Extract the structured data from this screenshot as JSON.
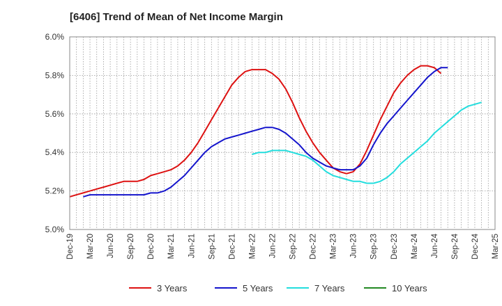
{
  "chart_data": {
    "type": "line",
    "title": "[6406]  Trend of Mean of Net Income Margin",
    "xlabel": "",
    "ylabel": "",
    "ylim": [
      5.0,
      6.0
    ],
    "yticks": [
      "5.0%",
      "5.2%",
      "5.4%",
      "5.6%",
      "5.8%",
      "6.0%"
    ],
    "xticks": [
      "Dec-19",
      "Mar-20",
      "Jun-20",
      "Sep-20",
      "Dec-20",
      "Mar-21",
      "Jun-21",
      "Sep-21",
      "Dec-21",
      "Mar-22",
      "Jun-22",
      "Sep-22",
      "Dec-22",
      "Mar-23",
      "Jun-23",
      "Sep-23",
      "Dec-23",
      "Mar-24",
      "Jun-24",
      "Sep-24",
      "Dec-24",
      "Mar-25"
    ],
    "grid": true,
    "legend_position": "bottom",
    "series": [
      {
        "name": "3 Years",
        "color": "#dd1111",
        "start_index": 0,
        "values": [
          5.17,
          5.18,
          5.19,
          5.2,
          5.21,
          5.22,
          5.23,
          5.24,
          5.25,
          5.25,
          5.25,
          5.26,
          5.28,
          5.29,
          5.3,
          5.31,
          5.33,
          5.36,
          5.4,
          5.45,
          5.51,
          5.57,
          5.63,
          5.69,
          5.75,
          5.79,
          5.82,
          5.83,
          5.83,
          5.83,
          5.81,
          5.78,
          5.73,
          5.66,
          5.58,
          5.51,
          5.45,
          5.4,
          5.36,
          5.32,
          5.3,
          5.29,
          5.3,
          5.34,
          5.41,
          5.49,
          5.57,
          5.64,
          5.71,
          5.76,
          5.8,
          5.83,
          5.85,
          5.85,
          5.84,
          5.81
        ]
      },
      {
        "name": "5 Years",
        "color": "#1414cc",
        "start_index": 2,
        "values": [
          5.17,
          5.18,
          5.18,
          5.18,
          5.18,
          5.18,
          5.18,
          5.18,
          5.18,
          5.18,
          5.19,
          5.19,
          5.2,
          5.22,
          5.25,
          5.28,
          5.32,
          5.36,
          5.4,
          5.43,
          5.45,
          5.47,
          5.48,
          5.49,
          5.5,
          5.51,
          5.52,
          5.53,
          5.53,
          5.52,
          5.5,
          5.47,
          5.44,
          5.4,
          5.37,
          5.35,
          5.33,
          5.32,
          5.31,
          5.31,
          5.31,
          5.33,
          5.37,
          5.44,
          5.5,
          5.55,
          5.59,
          5.63,
          5.67,
          5.71,
          5.75,
          5.79,
          5.82,
          5.84,
          5.84
        ]
      },
      {
        "name": "7 Years",
        "color": "#22dddd",
        "start_index": 27,
        "values": [
          5.39,
          5.4,
          5.4,
          5.41,
          5.41,
          5.41,
          5.4,
          5.39,
          5.38,
          5.36,
          5.33,
          5.3,
          5.28,
          5.27,
          5.26,
          5.25,
          5.25,
          5.24,
          5.24,
          5.25,
          5.27,
          5.3,
          5.34,
          5.37,
          5.4,
          5.43,
          5.46,
          5.5,
          5.53,
          5.56,
          5.59,
          5.62,
          5.64,
          5.65,
          5.66
        ]
      },
      {
        "name": "10 Years",
        "color": "#228822",
        "start_index": 0,
        "values": []
      }
    ]
  }
}
